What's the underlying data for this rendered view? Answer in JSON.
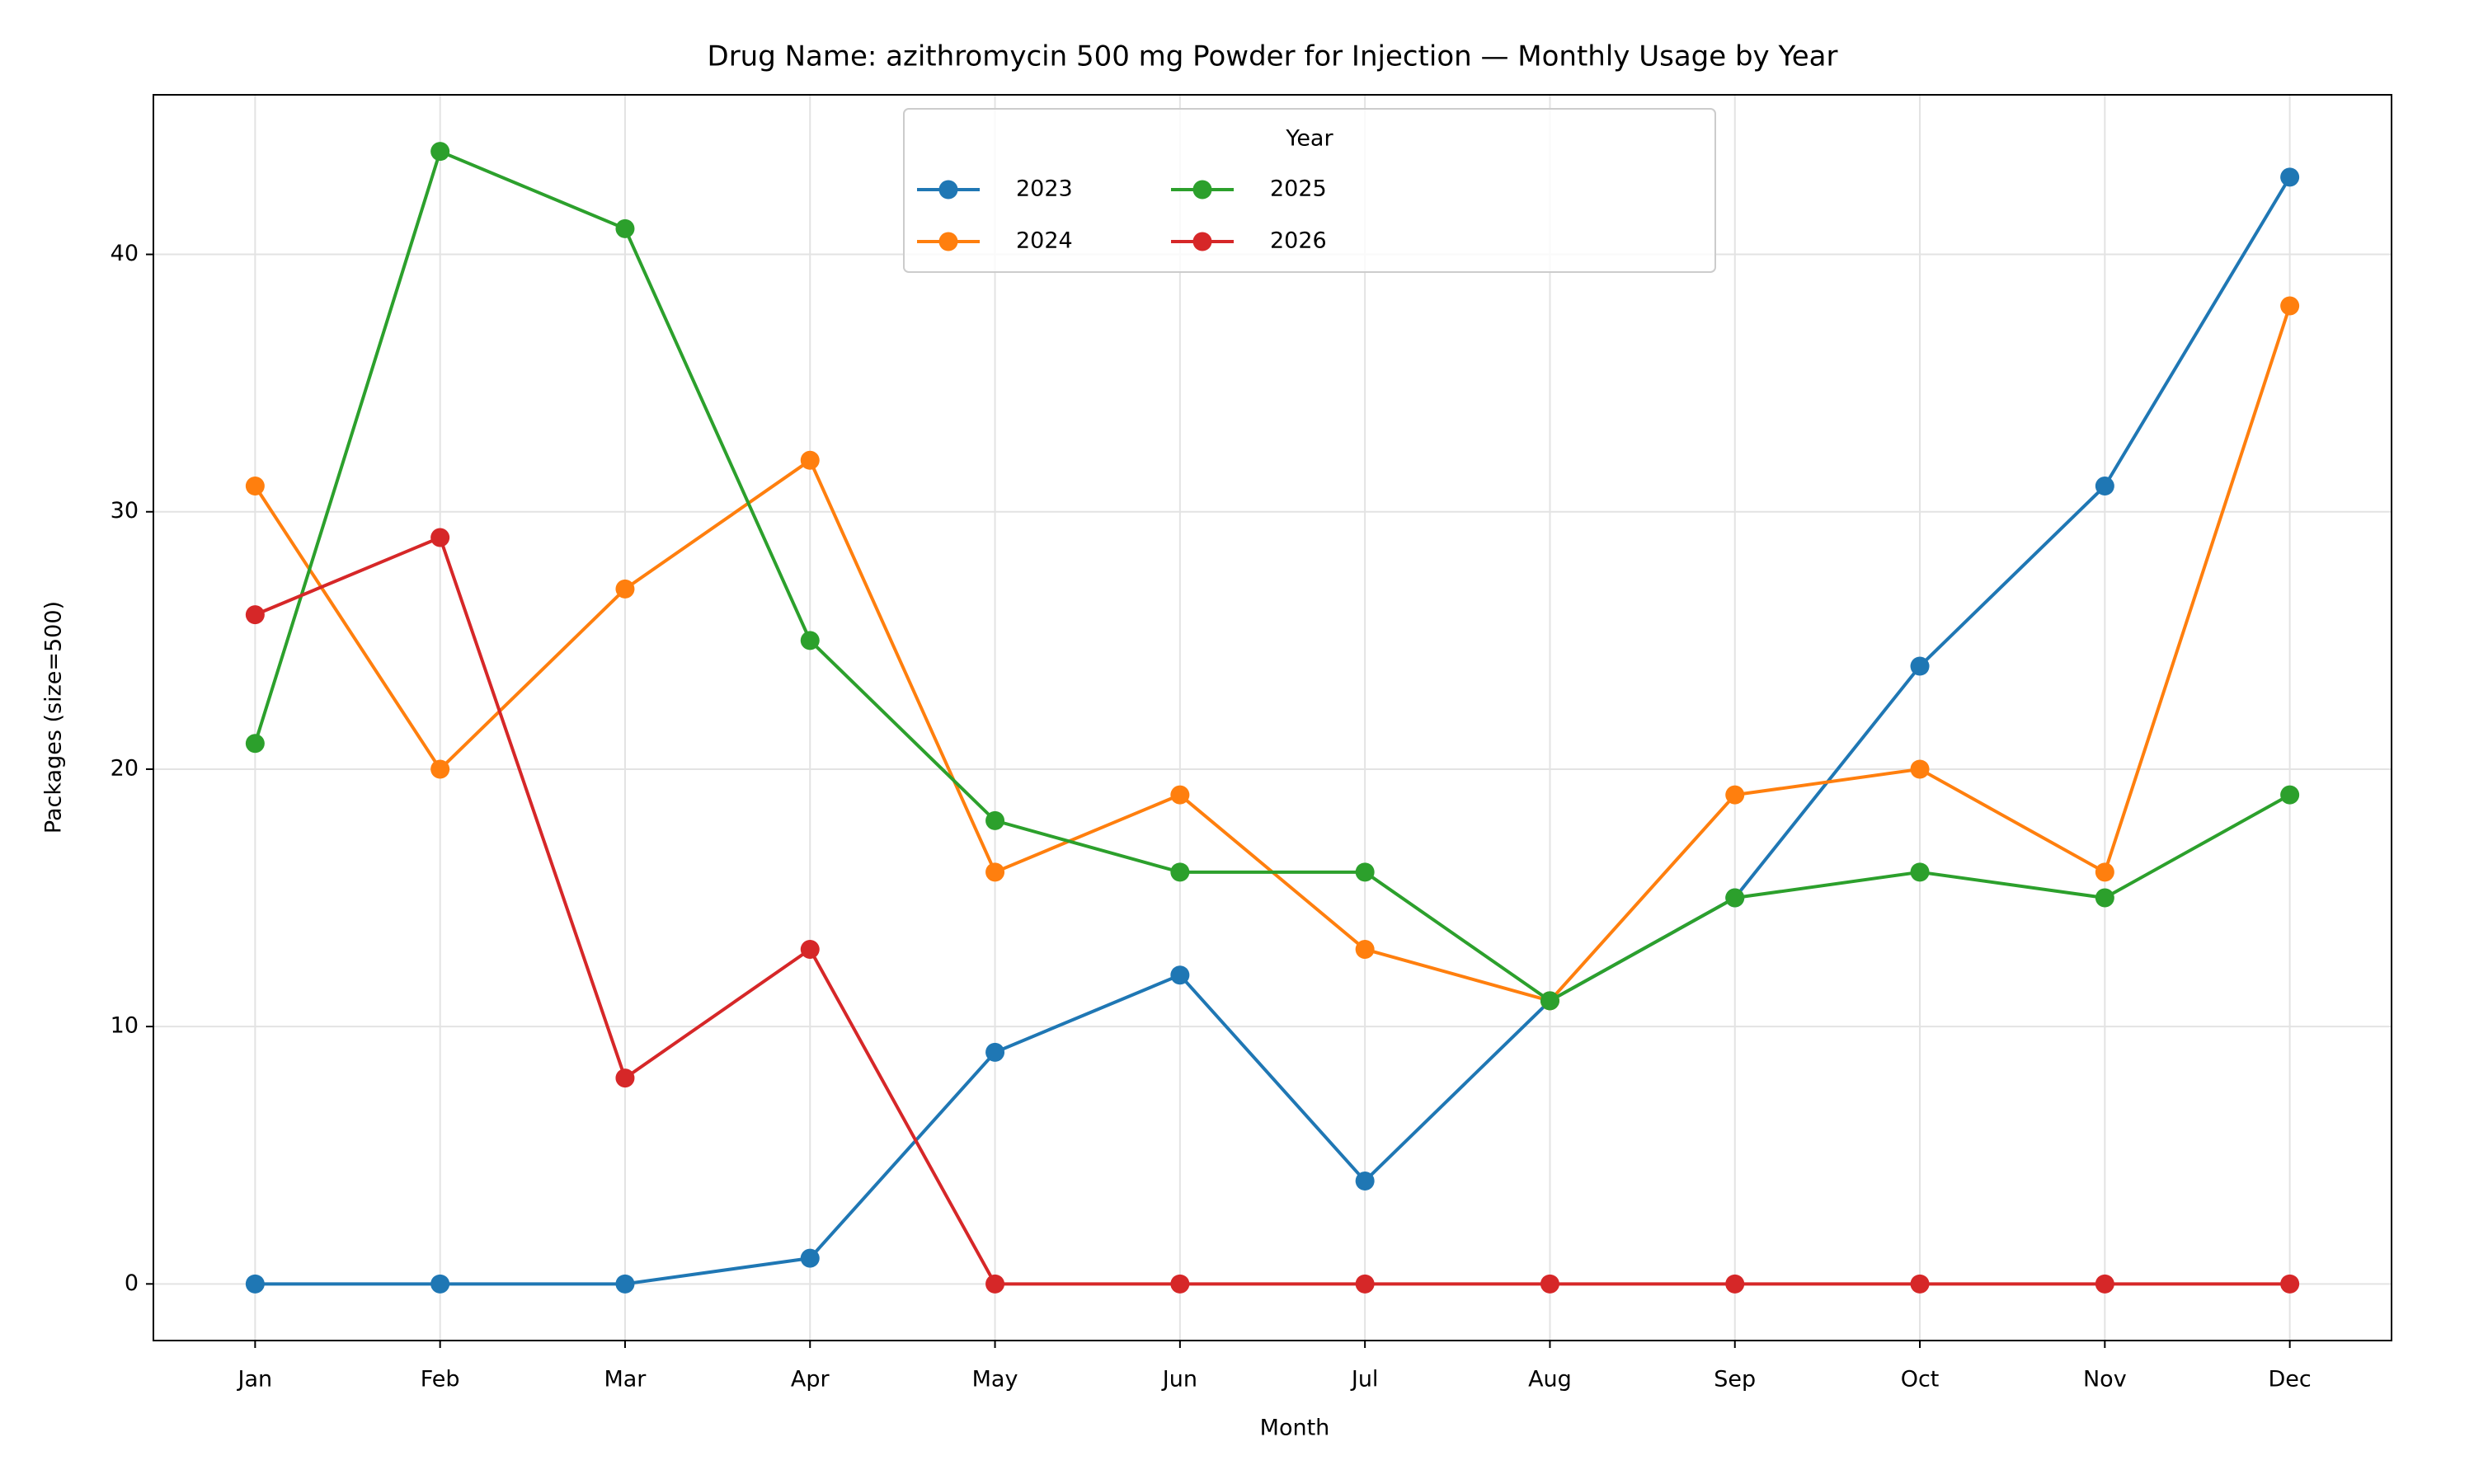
{
  "chart_data": {
    "type": "line",
    "title": "Drug Name: azithromycin 500 mg Powder for Injection — Monthly Usage by Year",
    "x_label": "Month",
    "y_label": "Packages (size=500)",
    "categories": [
      "Jan",
      "Feb",
      "Mar",
      "Apr",
      "May",
      "Jun",
      "Jul",
      "Aug",
      "Sep",
      "Oct",
      "Nov",
      "Dec"
    ],
    "series": [
      {
        "name": "2023",
        "color": "#1f77b4",
        "values": [
          0,
          0,
          0,
          1,
          9,
          12,
          4,
          11,
          15,
          24,
          31,
          43
        ]
      },
      {
        "name": "2024",
        "color": "#ff7f0e",
        "values": [
          31,
          20,
          27,
          32,
          16,
          19,
          13,
          11,
          19,
          20,
          16,
          38
        ]
      },
      {
        "name": "2025",
        "color": "#2ca02c",
        "values": [
          21,
          44,
          41,
          25,
          18,
          16,
          16,
          11,
          15,
          16,
          15,
          19
        ]
      },
      {
        "name": "2026",
        "color": "#d62728",
        "values": [
          26,
          29,
          8,
          13,
          0,
          0,
          0,
          0,
          0,
          0,
          0,
          0
        ]
      }
    ],
    "ylim": [
      -2.2,
      46.2
    ],
    "yticks": [
      0,
      10,
      20,
      30,
      40
    ],
    "grid": true,
    "legend_title": "Year",
    "legend_position": "upper center",
    "legend_columns": 3
  }
}
